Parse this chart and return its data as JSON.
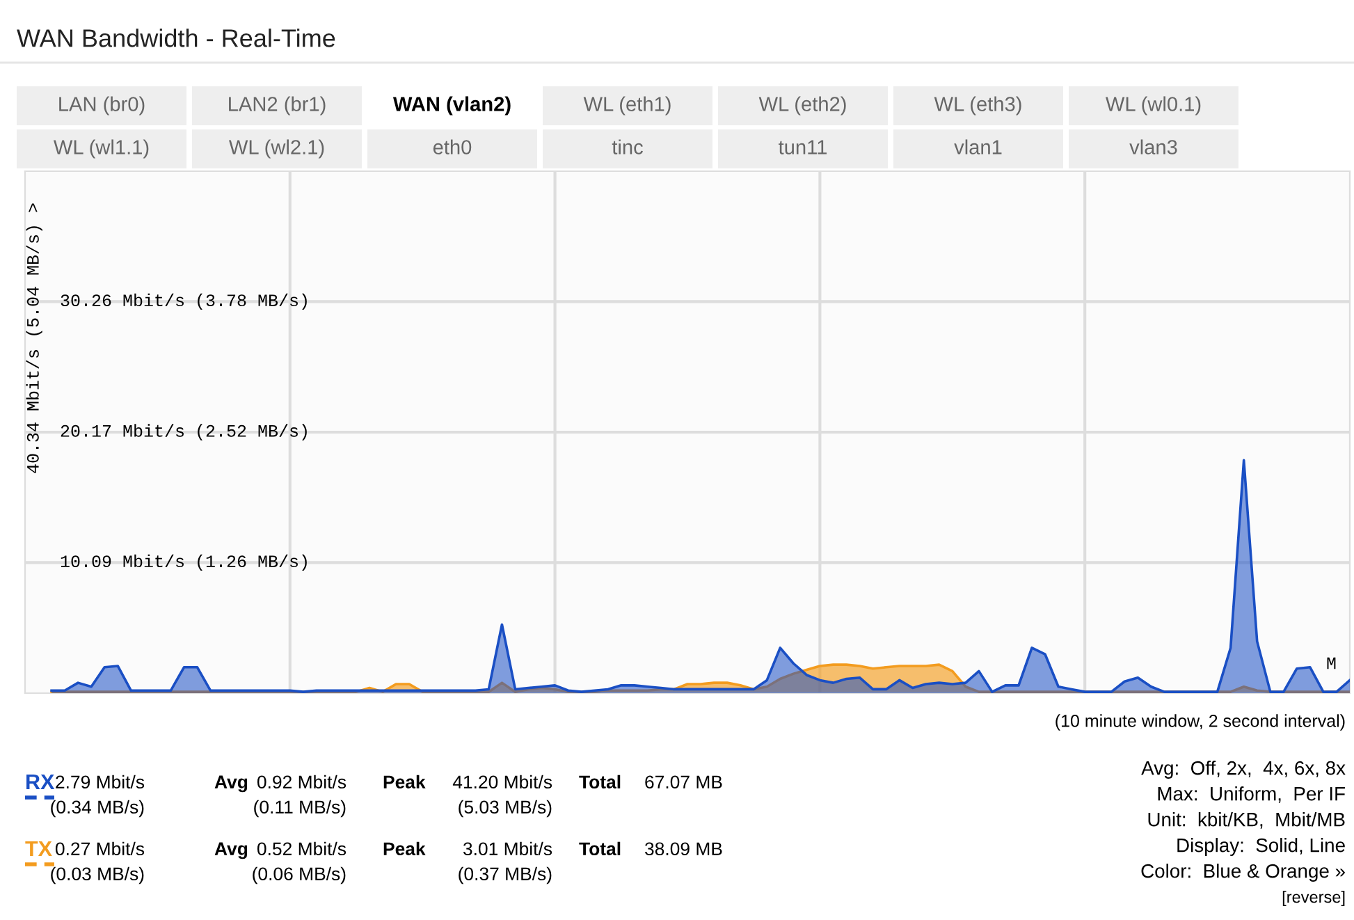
{
  "chart_data": {
    "type": "area",
    "title": "WAN Bandwidth - Real-Time",
    "ylabel": "40.34 Mbit/s (5.04 MB/s) >",
    "categories": [
      null,
      null,
      null,
      null,
      null,
      null,
      null,
      null,
      null,
      null,
      null,
      null,
      null,
      null,
      null,
      null,
      null,
      null,
      null,
      null,
      null,
      null,
      null,
      null,
      null,
      null,
      null,
      null,
      null,
      null,
      null,
      null,
      null,
      null,
      null,
      null,
      null,
      null,
      null,
      null,
      null,
      null,
      null,
      null,
      null,
      null,
      null,
      null,
      null,
      null,
      null,
      null,
      null,
      null,
      null,
      null,
      null,
      null,
      null,
      null,
      null,
      null,
      null,
      null,
      null,
      null,
      null,
      null,
      null,
      null,
      null,
      null,
      null,
      null,
      null,
      null,
      null,
      null,
      null,
      null,
      null,
      null,
      null,
      null,
      null,
      null,
      null,
      null,
      null,
      null,
      null,
      null,
      null,
      null,
      null,
      null,
      null,
      null,
      null
    ],
    "ylim": [
      0,
      40.34
    ],
    "yticks": [
      {
        "value": 10.09,
        "label": "10.09 Mbit/s"
      },
      {
        "value": 20.17,
        "label": "20.17 Mbit/s"
      },
      {
        "value": 30.26,
        "label": "30.26 Mbit/s"
      }
    ],
    "tick_labels": "y",
    "grid": true,
    "series": [
      {
        "name": "TX",
        "color": "#f39c1f",
        "values": [
          0.1,
          0.1,
          0.1,
          0.1,
          0.1,
          0.1,
          0.1,
          0.1,
          0.1,
          0.1,
          0.1,
          0.1,
          0.1,
          0.1,
          0.1,
          0.1,
          0.1,
          0.1,
          0.1,
          0.1,
          0.1,
          0.1,
          0.1,
          0.1,
          0.4,
          0.1,
          0.7,
          0.7,
          0.1,
          0.1,
          0.1,
          0.1,
          0.1,
          0.1,
          0.8,
          0.1,
          0.3,
          0.4,
          0.3,
          0.1,
          0.1,
          0.1,
          0.2,
          0.2,
          0.2,
          0.2,
          0.3,
          0.3,
          0.7,
          0.7,
          0.8,
          0.8,
          0.6,
          0.3,
          0.5,
          1.1,
          1.5,
          1.8,
          2.1,
          2.2,
          2.2,
          2.1,
          1.9,
          2.0,
          2.1,
          2.1,
          2.1,
          2.2,
          1.7,
          0.5,
          0.1,
          0.1,
          0.1,
          0.1,
          0.1,
          0.1,
          0.1,
          0.1,
          0.1,
          0.1,
          0.1,
          0.1,
          0.1,
          0.1,
          0.1,
          0.1,
          0.1,
          0.1,
          0.1,
          0.1,
          0.5,
          0.2,
          0.1,
          0.1,
          0.1,
          0.1,
          0.1,
          0.1,
          0.1
        ]
      },
      {
        "name": "RX",
        "color": "#1a4fc4",
        "values": [
          0.2,
          0.2,
          0.8,
          0.5,
          2.0,
          2.1,
          0.2,
          0.2,
          0.2,
          0.2,
          2.0,
          2.0,
          0.2,
          0.2,
          0.2,
          0.2,
          0.2,
          0.2,
          0.2,
          0.1,
          0.2,
          0.2,
          0.2,
          0.2,
          0.2,
          0.2,
          0.2,
          0.2,
          0.2,
          0.2,
          0.2,
          0.2,
          0.2,
          0.3,
          5.3,
          0.3,
          0.4,
          0.5,
          0.6,
          0.2,
          0.1,
          0.2,
          0.3,
          0.6,
          0.6,
          0.5,
          0.4,
          0.3,
          0.3,
          0.3,
          0.3,
          0.3,
          0.3,
          0.3,
          1.0,
          3.5,
          2.3,
          1.4,
          1.0,
          0.8,
          1.1,
          1.2,
          0.3,
          0.3,
          1.0,
          0.4,
          0.7,
          0.8,
          0.7,
          0.8,
          1.7,
          0.1,
          0.6,
          0.6,
          3.5,
          3.0,
          0.5,
          0.3,
          0.1,
          0.1,
          0.1,
          0.9,
          1.2,
          0.5,
          0.1,
          0.1,
          0.1,
          0.1,
          0.1,
          3.5,
          18.0,
          4.0,
          0.1,
          0.1,
          1.9,
          2.0,
          0.1,
          0.1,
          1.0
        ]
      }
    ],
    "annotations": [
      "LAN (br0)",
      "LAN2 (br1)",
      "WAN (vlan2)",
      "WL (eth1)",
      "WL (eth2)",
      "WL (eth3)",
      "WL (wl0.1)",
      "WL (wl1.1)",
      "WL (wl2.1)",
      "eth0",
      "tinc",
      "tun11",
      "vlan1",
      "vlan3",
      "(10 minute window, 2 second interval)",
      "M",
      "2.79 Mbit/s",
      "(0.34 MB/s)",
      "Avg",
      "0.92 Mbit/s",
      "(0.11 MB/s)",
      "Peak",
      "41.20 Mbit/s",
      "(5.03 MB/s)",
      "Total",
      "67.07 MB",
      "0.27 Mbit/s",
      "(0.03 MB/s)",
      "Avg",
      "0.52 Mbit/s",
      "(0.06 MB/s)",
      "Peak",
      "3.01 Mbit/s",
      "(0.37 MB/s)",
      "Total",
      "38.09 MB",
      "Avg:  Off, 2x,  4x, 6x, 8x",
      "Max:  Uniform,  Per IF",
      "Unit:  kbit/KB,  Mbit/MB",
      "Display:  Solid, Line",
      "Color:  Blue & Orange »",
      "[reverse]",
      "(1.26 MB/s)",
      "(2.52 MB/s)",
      "(3.78 MB/s)"
    ]
  }
}
